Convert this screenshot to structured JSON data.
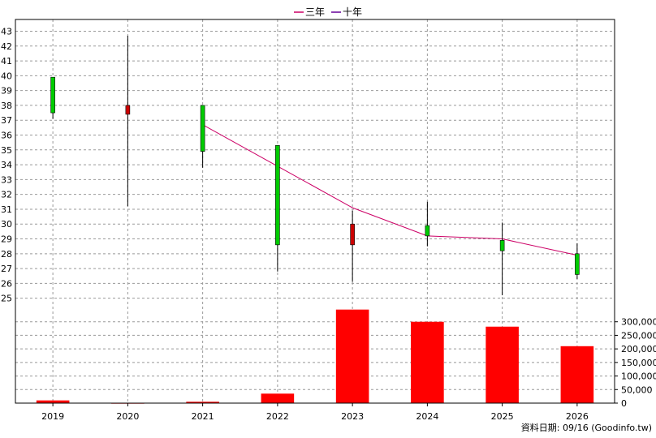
{
  "chart_data": {
    "type": "candlestick",
    "categories": [
      "2019",
      "2020",
      "2021",
      "2022",
      "2023",
      "2024",
      "2025",
      "2026"
    ],
    "candles": [
      {
        "year": "2019",
        "open": 37.5,
        "close": 39.9,
        "high": 39.9,
        "low": 37.1,
        "color": "#00cc00"
      },
      {
        "year": "2020",
        "open": 38.0,
        "close": 37.4,
        "high": 42.7,
        "low": 31.2,
        "color": "#cc0000"
      },
      {
        "year": "2021",
        "open": 34.9,
        "close": 38.0,
        "high": 38.0,
        "low": 33.8,
        "color": "#00cc00"
      },
      {
        "year": "2022",
        "open": 28.6,
        "close": 35.3,
        "high": 35.3,
        "low": 26.8,
        "color": "#00cc00"
      },
      {
        "year": "2023",
        "open": 30.0,
        "close": 28.6,
        "high": 30.9,
        "low": 26.1,
        "color": "#cc0000"
      },
      {
        "year": "2024",
        "open": 29.2,
        "close": 29.9,
        "high": 31.5,
        "low": 28.5,
        "color": "#00cc00"
      },
      {
        "year": "2025",
        "open": 28.2,
        "close": 28.9,
        "high": 30.1,
        "low": 25.2,
        "color": "#00cc00"
      },
      {
        "year": "2026",
        "open": 26.6,
        "close": 28.0,
        "high": 28.7,
        "low": 26.3,
        "color": "#00cc00"
      }
    ],
    "series": [
      {
        "name": "三年",
        "color": "#cc0066",
        "x": [
          "2021",
          "2022",
          "2023",
          "2024",
          "2025",
          "2026"
        ],
        "values": [
          36.7,
          33.9,
          31.1,
          29.2,
          29.0,
          27.9
        ]
      },
      {
        "name": "十年",
        "color": "#660099",
        "x": [],
        "values": []
      }
    ],
    "volume": {
      "color": "#ff0000",
      "values": [
        10000,
        1000,
        5000,
        35000,
        345000,
        300000,
        282000,
        210000
      ],
      "ylim": [
        0,
        350000
      ],
      "ticks": [
        0,
        50000,
        100000,
        150000,
        200000,
        250000,
        300000
      ],
      "tick_labels": [
        "0",
        "50,000",
        "100,000",
        "150,000",
        "200,000",
        "250,000",
        "300,000"
      ]
    },
    "ylim": [
      24.6,
      43.3
    ],
    "y_ticks": [
      25,
      26,
      27,
      28,
      29,
      30,
      31,
      32,
      33,
      34,
      35,
      36,
      37,
      38,
      39,
      40,
      41,
      42,
      43
    ],
    "grid": true,
    "legend_position": "top-center",
    "footer": "資料日期: 09/16  (Goodinfo.tw)"
  }
}
